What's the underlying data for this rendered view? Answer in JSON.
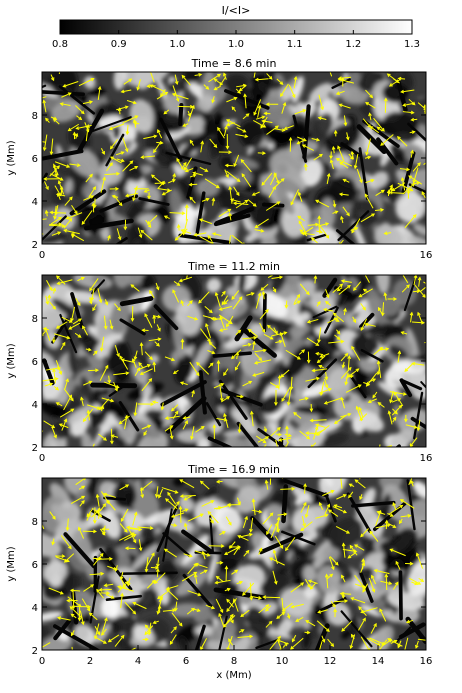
{
  "colorbar": {
    "label": "I/<I>",
    "ticks": [
      "0.8",
      "0.9",
      "1.0",
      "1.0",
      "1.1",
      "1.2",
      "1.3"
    ]
  },
  "chart_data": [
    {
      "type": "heatmap",
      "title": "Time =   8.6 min",
      "xlabel": "",
      "ylabel": "y (Mm)",
      "xlim": [
        0,
        16
      ],
      "ylim": [
        2,
        10
      ],
      "x_ticks": [
        "0",
        "16"
      ],
      "y_ticks": [
        "2",
        "4",
        "6",
        "8"
      ],
      "overlay": "velocity vectors (yellow arrows)",
      "colormap": "grayscale",
      "arrow_color": "#ffff00"
    },
    {
      "type": "heatmap",
      "title": "Time = 11.2 min",
      "xlabel": "",
      "ylabel": "y (Mm)",
      "xlim": [
        0,
        16
      ],
      "ylim": [
        2,
        10
      ],
      "x_ticks": [
        "0",
        "16"
      ],
      "y_ticks": [
        "2",
        "4",
        "6",
        "8"
      ],
      "overlay": "velocity vectors (yellow arrows)",
      "colormap": "grayscale",
      "arrow_color": "#ffff00"
    },
    {
      "type": "heatmap",
      "title": "Time = 16.9 min",
      "xlabel": "x (Mm)",
      "ylabel": "y (Mm)",
      "xlim": [
        0,
        16
      ],
      "ylim": [
        2,
        10
      ],
      "x_ticks": [
        "0",
        "2",
        "4",
        "6",
        "8",
        "10",
        "12",
        "14",
        "16"
      ],
      "y_ticks": [
        "2",
        "4",
        "6",
        "8"
      ],
      "overlay": "velocity vectors (yellow arrows)",
      "colormap": "grayscale",
      "arrow_color": "#ffff00"
    }
  ]
}
